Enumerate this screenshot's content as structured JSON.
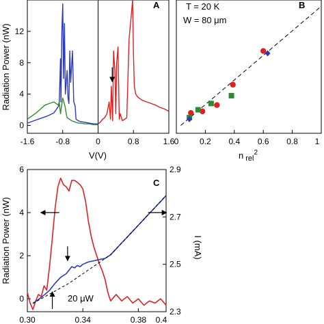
{
  "chart_data": [
    {
      "panel": "A",
      "type": "line",
      "ylabel": "Radiation Power (nW)",
      "xlabel": "V(V)",
      "xlim": [
        -1.6,
        1.6
      ],
      "ylim": [
        -1,
        16
      ],
      "xticks": [
        "-1.6",
        "-0.8",
        "0",
        "0.8",
        "1.6"
      ],
      "yticks": [
        "0",
        "4",
        "8",
        "12"
      ],
      "series": [
        {
          "color": "#2a3ab8",
          "x": [
            -1.6,
            -1.45,
            -1.3,
            -1.15,
            -1.0,
            -0.95,
            -0.88,
            -0.85,
            -0.84,
            -0.82,
            -0.8,
            -0.78,
            -0.76,
            -0.74,
            -0.7,
            -0.68,
            -0.66,
            -0.64,
            -0.62,
            -0.58,
            -0.55,
            -0.52,
            -0.5,
            -0.45,
            -0.4,
            -0.3,
            -0.2,
            -0.1,
            0.0
          ],
          "y": [
            0.3,
            0.6,
            0.9,
            1.2,
            1.6,
            2.0,
            2.6,
            8.5,
            3.0,
            12.0,
            15.5,
            6.0,
            13.0,
            4.0,
            7.0,
            3.5,
            2.8,
            9.5,
            5.5,
            9.5,
            3.0,
            2.5,
            0.8,
            0.6,
            0.5,
            0.4,
            0.3,
            0.2,
            0.2
          ]
        },
        {
          "color": "#2e8b2e",
          "x": [
            -1.6,
            -1.5,
            -1.4,
            -1.3,
            -1.2,
            -1.1,
            -1.0,
            -0.95,
            -0.9,
            -0.88,
            -0.85,
            -0.8,
            -0.75,
            -0.72,
            -0.7,
            -0.65,
            -0.6,
            -0.55,
            -0.5,
            -0.45,
            -0.4,
            -0.3,
            -0.2,
            -0.1,
            0.0
          ],
          "y": [
            0.8,
            1.2,
            1.6,
            2.1,
            2.6,
            2.8,
            3.0,
            2.8,
            2.6,
            3.0,
            1.5,
            3.5,
            2.5,
            1.5,
            1.0,
            0.8,
            0.6,
            0.5,
            0.4,
            0.3,
            0.3,
            0.2,
            0.2,
            0.1,
            0.1
          ]
        },
        {
          "color": "#e02020",
          "x": [
            0.0,
            0.05,
            0.1,
            0.15,
            0.2,
            0.25,
            0.28,
            0.3,
            0.33,
            0.35,
            0.38,
            0.4,
            0.42,
            0.45,
            0.48,
            0.5,
            0.55,
            0.6,
            0.65,
            0.7,
            0.75,
            0.78,
            0.8,
            0.82,
            0.85,
            0.9,
            1.0,
            1.1,
            1.2,
            1.3,
            1.4,
            1.5,
            1.6
          ],
          "y": [
            0.2,
            0.4,
            0.8,
            1.0,
            1.5,
            3.0,
            0.8,
            5.0,
            0.6,
            9.5,
            7.0,
            1.5,
            8.0,
            10.0,
            0.8,
            1.5,
            0.6,
            0.8,
            1.0,
            11.0,
            14.0,
            16.0,
            9.0,
            5.0,
            4.0,
            3.6,
            3.2,
            3.0,
            2.8,
            2.6,
            2.3,
            2.1,
            1.8
          ]
        }
      ],
      "vline_x": 0,
      "arrow_annotation": {
        "x": 0.32,
        "y": 5.5
      }
    },
    {
      "panel": "B",
      "type": "scatter",
      "xlabel": "n",
      "xlabel_sub": "rel",
      "xlabel_sup": "2",
      "xlim": [
        0,
        1
      ],
      "ylim": [
        -1,
        16
      ],
      "xticks": [
        "0",
        "0.2",
        "0.4",
        "0.6",
        "0.8",
        "1"
      ],
      "annotations": [
        "T = 20 K",
        "W = 80 μm"
      ],
      "fit_line": {
        "x": [
          0.03,
          1.0
        ],
        "y": [
          0.0,
          15.2
        ]
      },
      "series": [
        {
          "marker": "circle",
          "color": "#e02020",
          "points": [
            [
              0.1,
              1.6
            ],
            [
              0.18,
              1.8
            ],
            [
              0.28,
              2.6
            ],
            [
              0.39,
              5.2
            ],
            [
              0.6,
              9.5
            ]
          ]
        },
        {
          "marker": "square",
          "color": "#2e8b2e",
          "points": [
            [
              0.09,
              1.0
            ],
            [
              0.15,
              2.0
            ],
            [
              0.24,
              2.8
            ],
            [
              0.38,
              3.8
            ]
          ]
        },
        {
          "marker": "diamond",
          "color": "#2a3ab8",
          "points": [
            [
              0.09,
              0.8
            ],
            [
              0.63,
              9.2
            ]
          ]
        }
      ]
    },
    {
      "panel": "C",
      "type": "line",
      "ylabel": "Radiation Power (nW)",
      "y2label": "I (mA)",
      "xlim": [
        0.3,
        0.4
      ],
      "ylim": [
        -0.6,
        6
      ],
      "y2lim": [
        2.3,
        2.9
      ],
      "xticks": [
        "0.30",
        "0.34",
        "0.38",
        "0.4"
      ],
      "yticks": [
        "0",
        "2",
        "4",
        "6"
      ],
      "y2ticks": [
        "2.3",
        "2.5",
        "2.7",
        "2.9"
      ],
      "annotation": "20 μW",
      "series": [
        {
          "axis": "left",
          "color": "#e02020",
          "x": [
            0.3,
            0.302,
            0.304,
            0.306,
            0.308,
            0.31,
            0.312,
            0.314,
            0.316,
            0.318,
            0.32,
            0.322,
            0.324,
            0.326,
            0.328,
            0.33,
            0.332,
            0.334,
            0.336,
            0.338,
            0.34,
            0.342,
            0.344,
            0.346,
            0.348,
            0.35,
            0.352,
            0.354,
            0.356,
            0.358,
            0.36,
            0.364,
            0.368,
            0.372,
            0.376,
            0.38,
            0.384,
            0.388,
            0.392,
            0.396,
            0.4
          ],
          "y": [
            0.3,
            -0.2,
            -0.5,
            -0.1,
            0.2,
            0.1,
            0.6,
            0.4,
            1.5,
            2.8,
            4.2,
            5.2,
            5.6,
            5.3,
            5.2,
            5.0,
            5.5,
            5.5,
            5.4,
            5.3,
            5.1,
            4.5,
            3.6,
            2.9,
            2.4,
            2.0,
            1.6,
            1.3,
            0.9,
            0.3,
            -0.1,
            0.2,
            -0.1,
            0.1,
            -0.2,
            0.0,
            -0.3,
            -0.1,
            -0.2,
            0.0,
            -0.3
          ]
        },
        {
          "axis": "right",
          "color": "#2a3ab8",
          "x": [
            0.304,
            0.31,
            0.316,
            0.32,
            0.324,
            0.328,
            0.332,
            0.334,
            0.336,
            0.338,
            0.34,
            0.344,
            0.348,
            0.352,
            0.356,
            0.36,
            0.364,
            0.368,
            0.372,
            0.376,
            0.38,
            0.384,
            0.388,
            0.392,
            0.396,
            0.4
          ],
          "y": [
            2.335,
            2.36,
            2.39,
            2.42,
            2.445,
            2.46,
            2.49,
            2.485,
            2.495,
            2.49,
            2.5,
            2.51,
            2.515,
            2.52,
            2.525,
            2.54,
            2.565,
            2.59,
            2.615,
            2.64,
            2.665,
            2.69,
            2.715,
            2.74,
            2.765,
            2.79
          ]
        },
        {
          "axis": "right",
          "color": "#000000",
          "dash": true,
          "x": [
            0.304,
            0.33,
            0.36,
            0.4
          ],
          "y": [
            2.335,
            2.42,
            2.54,
            2.79
          ]
        }
      ],
      "arrows": [
        {
          "x": 0.329,
          "y": 1.8,
          "dir": "down"
        },
        {
          "x": 0.321,
          "y": 4.0,
          "dir": "left"
        },
        {
          "x": 0.389,
          "y": 4.0,
          "dir": "right"
        }
      ]
    }
  ],
  "panel_labels": {
    "a": "A",
    "b": "B",
    "c": "C"
  }
}
